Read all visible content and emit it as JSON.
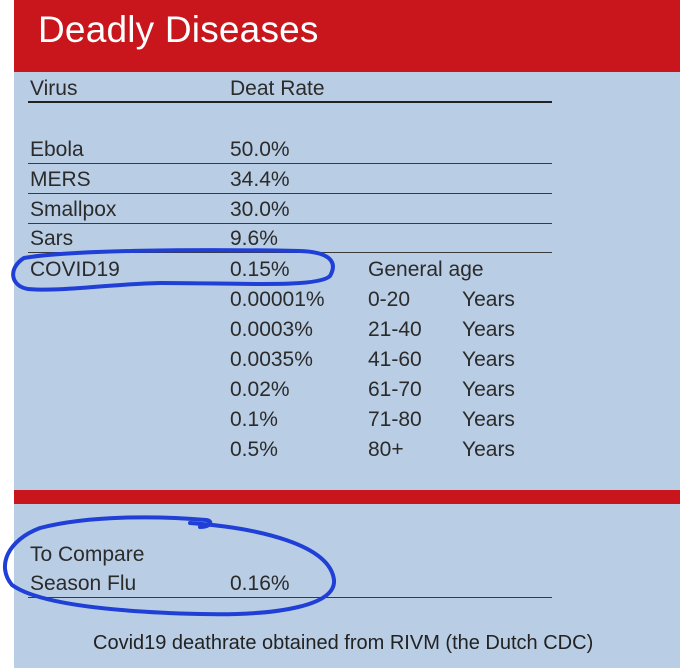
{
  "title": "Deadly Diseases",
  "header_row": {
    "col1": "Virus",
    "col2": "Deat Rate"
  },
  "diseases": [
    {
      "name": "Ebola",
      "rate": "50.0%"
    },
    {
      "name": "MERS",
      "rate": "34.4%"
    },
    {
      "name": "Smallpox",
      "rate": "30.0%"
    },
    {
      "name": "Sars",
      "rate": "9.6%"
    },
    {
      "name": "COVID19",
      "rate": "0.15%"
    }
  ],
  "general_age_label": "General age",
  "age_rows": [
    {
      "rate": "0.00001%",
      "range": "0-20",
      "unit": "Years"
    },
    {
      "rate": "0.0003%",
      "range": "21-40",
      "unit": "Years"
    },
    {
      "rate": "0.0035%",
      "range": "41-60",
      "unit": "Years"
    },
    {
      "rate": "0.02%",
      "range": "61-70",
      "unit": "Years"
    },
    {
      "rate": "0.1%",
      "range": "71-80",
      "unit": "Years"
    },
    {
      "rate": "0.5%",
      "range": "80+",
      "unit": "Years"
    }
  ],
  "compare": {
    "label": "To Compare",
    "name": "Season Flu",
    "rate": "0.16%"
  },
  "footnote": "Covid19 deathrate obtained from RIVM (the Dutch CDC)",
  "colors": {
    "header_red": "#c8161c",
    "background_blue": "#b9cde4",
    "annotation_blue": "#1f3fd6"
  }
}
